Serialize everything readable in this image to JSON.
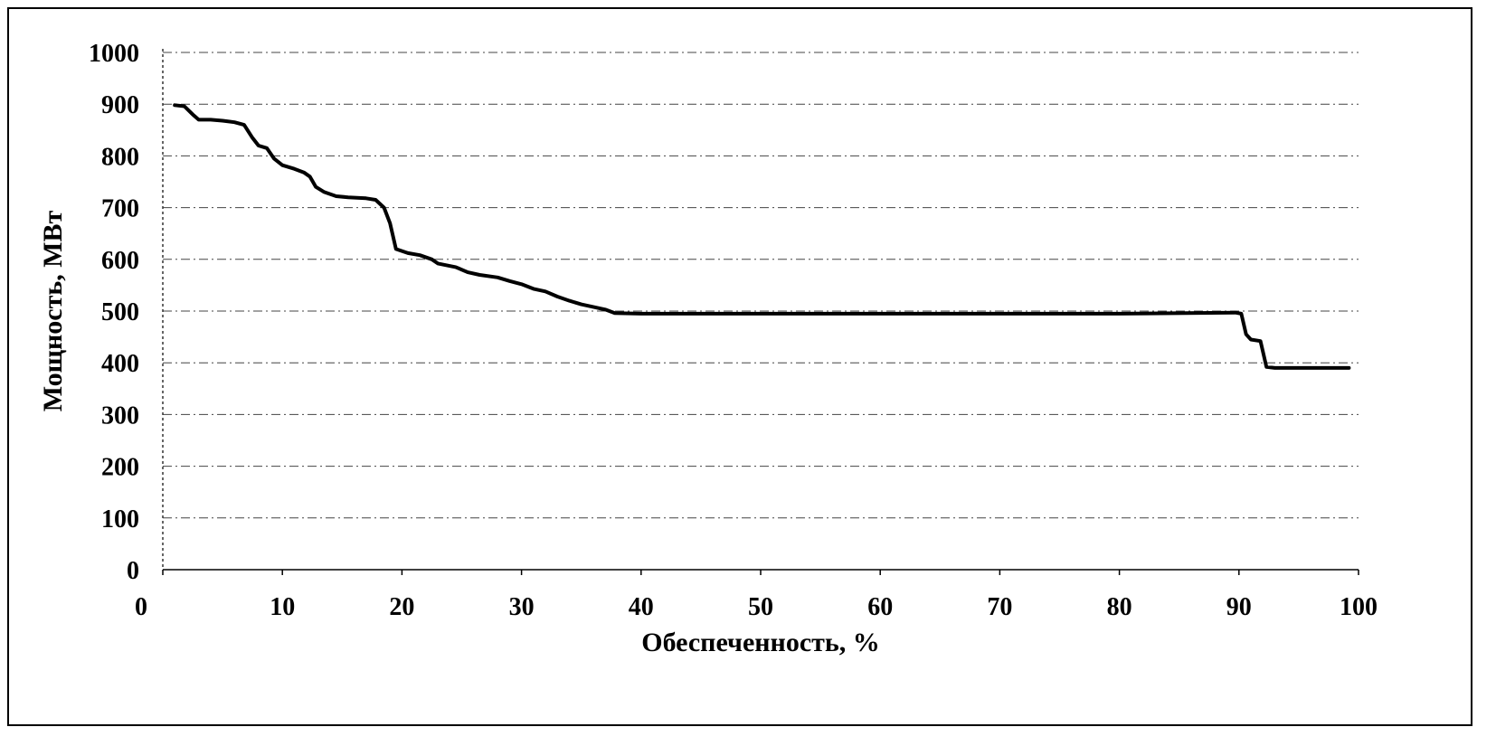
{
  "chart_data": {
    "type": "line",
    "xlabel": "Обеспеченность, %",
    "ylabel": "Мощность, МВт",
    "xlim": [
      0,
      100
    ],
    "ylim": [
      0,
      1000
    ],
    "x_ticks": [
      "0",
      "10",
      "20",
      "30",
      "40",
      "50",
      "60",
      "70",
      "80",
      "90",
      "100"
    ],
    "y_ticks": [
      "0",
      "100",
      "200",
      "300",
      "400",
      "500",
      "600",
      "700",
      "800",
      "900",
      "1000"
    ],
    "grid": "horizontal dashed",
    "legend": "none",
    "series": [
      {
        "color": "#000000",
        "points": [
          [
            1,
            898
          ],
          [
            1.8,
            896
          ],
          [
            2.5,
            880
          ],
          [
            3,
            870
          ],
          [
            4,
            870
          ],
          [
            5,
            868
          ],
          [
            6,
            865
          ],
          [
            6.8,
            860
          ],
          [
            7.5,
            835
          ],
          [
            8,
            820
          ],
          [
            8.7,
            815
          ],
          [
            9.3,
            795
          ],
          [
            10,
            782
          ],
          [
            11,
            775
          ],
          [
            11.8,
            768
          ],
          [
            12.3,
            760
          ],
          [
            12.8,
            740
          ],
          [
            13.5,
            730
          ],
          [
            14.5,
            722
          ],
          [
            15.5,
            720
          ],
          [
            17,
            718
          ],
          [
            17.8,
            715
          ],
          [
            18.5,
            700
          ],
          [
            19,
            670
          ],
          [
            19.5,
            620
          ],
          [
            20.5,
            612
          ],
          [
            21.5,
            608
          ],
          [
            22.5,
            600
          ],
          [
            23,
            592
          ],
          [
            24.5,
            585
          ],
          [
            25.5,
            575
          ],
          [
            26.5,
            570
          ],
          [
            28,
            565
          ],
          [
            29,
            558
          ],
          [
            30,
            552
          ],
          [
            31,
            543
          ],
          [
            32,
            538
          ],
          [
            33,
            528
          ],
          [
            34,
            520
          ],
          [
            35,
            513
          ],
          [
            36,
            508
          ],
          [
            37,
            503
          ],
          [
            37.8,
            496
          ],
          [
            40,
            495
          ],
          [
            50,
            495
          ],
          [
            60,
            495
          ],
          [
            70,
            495
          ],
          [
            80,
            495
          ],
          [
            89.7,
            497
          ],
          [
            90.2,
            495
          ],
          [
            90.6,
            455
          ],
          [
            91,
            445
          ],
          [
            91.8,
            442
          ],
          [
            92.3,
            392
          ],
          [
            93,
            390
          ],
          [
            95,
            390
          ],
          [
            97,
            390
          ],
          [
            99.2,
            390
          ]
        ]
      }
    ]
  }
}
